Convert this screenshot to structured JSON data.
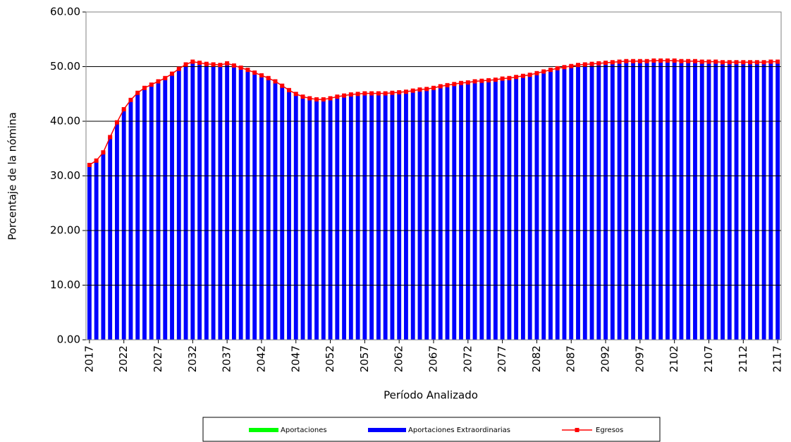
{
  "chart_data": {
    "type": "bar-line",
    "x_label": "Período Analizado",
    "y_label": "Porcentaje de la nómina",
    "categories": [
      "2017",
      null,
      null,
      null,
      null,
      "2022",
      null,
      null,
      null,
      null,
      "2027",
      null,
      null,
      null,
      null,
      "2032",
      null,
      null,
      null,
      null,
      "2037",
      null,
      null,
      null,
      null,
      "2042",
      null,
      null,
      null,
      null,
      "2047",
      null,
      null,
      null,
      null,
      "2052",
      null,
      null,
      null,
      null,
      "2057",
      null,
      null,
      null,
      null,
      "2062",
      null,
      null,
      null,
      null,
      "2067",
      null,
      null,
      null,
      null,
      "2072",
      null,
      null,
      null,
      null,
      "2077",
      null,
      null,
      null,
      null,
      "2082",
      null,
      null,
      null,
      null,
      "2087",
      null,
      null,
      null,
      null,
      "2092",
      null,
      null,
      null,
      null,
      "2097",
      null,
      null,
      null,
      null,
      "2102",
      null,
      null,
      null,
      null,
      "2107",
      null,
      null,
      null,
      null,
      "2112",
      null,
      null,
      null,
      null,
      "2117"
    ],
    "series": [
      {
        "name": "Aportaciones",
        "color": "#00ff00",
        "kind": "bar",
        "values": [
          0,
          0,
          0,
          0,
          0,
          0,
          0,
          0,
          0,
          0,
          0,
          0,
          0,
          0,
          0,
          0,
          0,
          0,
          0,
          0,
          0,
          0,
          0,
          0,
          0,
          0,
          0,
          0,
          0,
          0,
          0,
          0,
          0,
          0,
          0,
          0,
          0,
          0,
          0,
          0,
          0,
          0,
          0,
          0,
          0,
          0,
          0,
          0,
          0,
          0,
          0,
          0,
          0,
          0,
          0,
          0,
          0,
          0,
          0,
          0,
          0,
          0,
          0,
          0,
          0,
          0,
          0,
          0,
          0,
          0,
          0,
          0,
          0,
          0,
          0,
          0,
          0,
          0,
          0,
          0,
          0,
          0,
          0,
          0,
          0,
          0,
          0,
          0,
          0,
          0,
          0,
          0,
          0,
          0,
          0,
          0,
          0,
          0,
          0,
          0,
          0
        ]
      },
      {
        "name": "Aportaciones Extraordinarias",
        "color": "#0000ff",
        "kind": "bar",
        "values": [
          32.0,
          32.8,
          34.3,
          37.1,
          39.8,
          42.2,
          43.9,
          45.2,
          46.1,
          46.7,
          47.3,
          47.9,
          48.7,
          49.6,
          50.4,
          50.9,
          50.7,
          50.5,
          50.4,
          50.3,
          50.6,
          50.2,
          49.8,
          49.4,
          48.9,
          48.4,
          47.9,
          47.3,
          46.5,
          45.7,
          45.0,
          44.5,
          44.2,
          44.0,
          44.0,
          44.2,
          44.5,
          44.7,
          44.9,
          45.0,
          45.1,
          45.1,
          45.1,
          45.1,
          45.2,
          45.3,
          45.4,
          45.6,
          45.8,
          45.9,
          46.1,
          46.4,
          46.6,
          46.8,
          47.0,
          47.1,
          47.3,
          47.4,
          47.5,
          47.6,
          47.8,
          47.9,
          48.1,
          48.3,
          48.5,
          48.8,
          49.1,
          49.4,
          49.7,
          49.9,
          50.1,
          50.3,
          50.4,
          50.5,
          50.6,
          50.7,
          50.8,
          50.9,
          51.0,
          51.0,
          51.0,
          51.0,
          51.1,
          51.1,
          51.1,
          51.1,
          51.0,
          51.0,
          51.0,
          50.9,
          50.9,
          50.9,
          50.8,
          50.8,
          50.8,
          50.8,
          50.8,
          50.8,
          50.8,
          50.9,
          50.9
        ]
      },
      {
        "name": "Egresos",
        "color": "#ff0000",
        "kind": "line",
        "values": [
          32.0,
          32.8,
          34.3,
          37.1,
          39.8,
          42.2,
          43.9,
          45.2,
          46.1,
          46.7,
          47.3,
          47.9,
          48.7,
          49.6,
          50.4,
          50.9,
          50.7,
          50.5,
          50.4,
          50.3,
          50.6,
          50.2,
          49.8,
          49.4,
          48.9,
          48.4,
          47.9,
          47.3,
          46.5,
          45.7,
          45.0,
          44.5,
          44.2,
          44.0,
          44.0,
          44.2,
          44.5,
          44.7,
          44.9,
          45.0,
          45.1,
          45.1,
          45.1,
          45.1,
          45.2,
          45.3,
          45.4,
          45.6,
          45.8,
          45.9,
          46.1,
          46.4,
          46.6,
          46.8,
          47.0,
          47.1,
          47.3,
          47.4,
          47.5,
          47.6,
          47.8,
          47.9,
          48.1,
          48.3,
          48.5,
          48.8,
          49.1,
          49.4,
          49.7,
          49.9,
          50.1,
          50.3,
          50.4,
          50.5,
          50.6,
          50.7,
          50.8,
          50.9,
          51.0,
          51.0,
          51.0,
          51.0,
          51.1,
          51.1,
          51.1,
          51.1,
          51.0,
          51.0,
          51.0,
          50.9,
          50.9,
          50.9,
          50.8,
          50.8,
          50.8,
          50.8,
          50.8,
          50.8,
          50.8,
          50.9,
          50.9
        ]
      }
    ],
    "ylim": [
      0,
      60
    ],
    "yticks": [
      {
        "value": 0,
        "label": "0.00"
      },
      {
        "value": 10,
        "label": "10.00"
      },
      {
        "value": 20,
        "label": "20.00"
      },
      {
        "value": 30,
        "label": "30.00"
      },
      {
        "value": 40,
        "label": "40.00"
      },
      {
        "value": 50,
        "label": "50.00"
      },
      {
        "value": 60,
        "label": "60.00"
      }
    ],
    "grid": true,
    "legend": "bottom"
  }
}
